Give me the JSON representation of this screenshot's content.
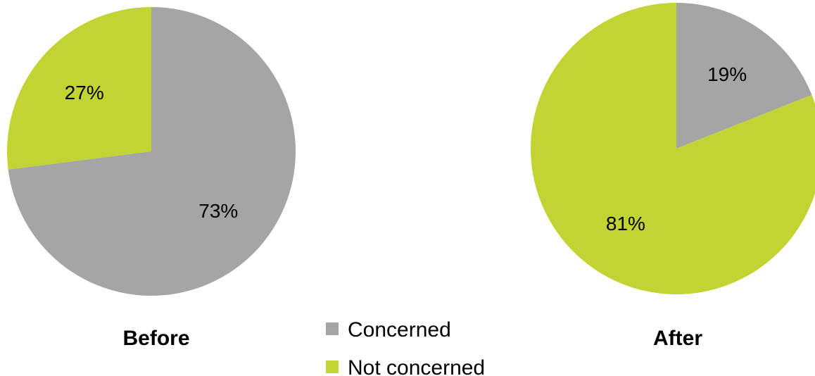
{
  "chart_data": {
    "type": "pie",
    "legend": {
      "placement": "bottom-center",
      "entries": [
        {
          "name": "Concerned",
          "color": "#A5A5A5"
        },
        {
          "name": "Not concerned",
          "color": "#C2D334"
        }
      ]
    },
    "pies": [
      {
        "title": "Before",
        "slices": [
          {
            "name": "Concerned",
            "value": 73,
            "label": "73%",
            "color": "#A5A5A5"
          },
          {
            "name": "Not concerned",
            "value": 27,
            "label": "27%",
            "color": "#C2D334"
          }
        ]
      },
      {
        "title": "After",
        "slices": [
          {
            "name": "Concerned",
            "value": 19,
            "label": "19%",
            "color": "#A5A5A5"
          },
          {
            "name": "Not concerned",
            "value": 81,
            "label": "81%",
            "color": "#C2D334"
          }
        ]
      }
    ]
  }
}
